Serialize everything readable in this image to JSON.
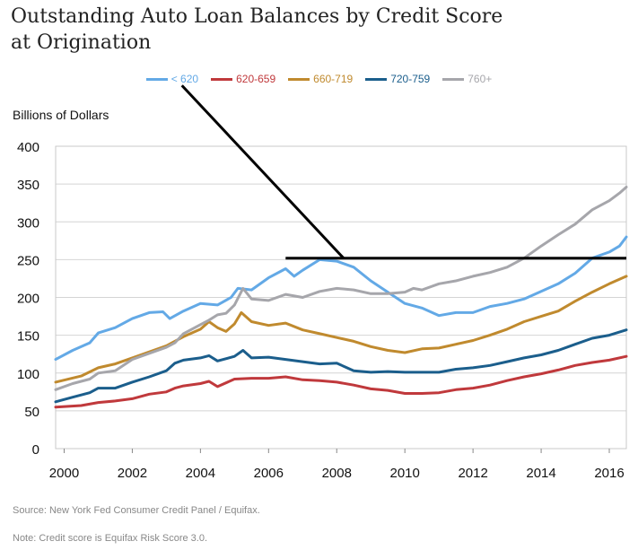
{
  "chart_data": {
    "type": "line",
    "title": "Outstanding Auto Loan Balances by Credit Score at Origination",
    "ylabel": "Billions of Dollars",
    "xlabel": "",
    "xlim": [
      1999.75,
      2016.5
    ],
    "ylim": [
      0,
      400
    ],
    "yticks": [
      0,
      50,
      100,
      150,
      200,
      250,
      300,
      350,
      400
    ],
    "xticks": [
      2000,
      2002,
      2004,
      2006,
      2008,
      2010,
      2012,
      2014,
      2016
    ],
    "grid": true,
    "legend_position": "top-center",
    "annotation": {
      "type": "callout-line",
      "anchor": {
        "x": 2008.2,
        "y": 252
      },
      "horizontal_to_x": 2016.5,
      "pointer_to_series": "< 620"
    },
    "series": [
      {
        "name": "< 620",
        "color": "#63a9e6",
        "points": [
          [
            1999.75,
            118
          ],
          [
            2000.25,
            130
          ],
          [
            2000.75,
            140
          ],
          [
            2001,
            153
          ],
          [
            2001.5,
            160
          ],
          [
            2002,
            172
          ],
          [
            2002.5,
            180
          ],
          [
            2002.9,
            181
          ],
          [
            2003.1,
            172
          ],
          [
            2003.5,
            182
          ],
          [
            2004,
            192
          ],
          [
            2004.5,
            190
          ],
          [
            2004.9,
            200
          ],
          [
            2005.1,
            212
          ],
          [
            2005.5,
            210
          ],
          [
            2006,
            226
          ],
          [
            2006.5,
            238
          ],
          [
            2006.75,
            228
          ],
          [
            2007,
            236
          ],
          [
            2007.5,
            250
          ],
          [
            2008,
            248
          ],
          [
            2008.5,
            240
          ],
          [
            2009,
            222
          ],
          [
            2009.5,
            207
          ],
          [
            2010,
            192
          ],
          [
            2010.5,
            186
          ],
          [
            2011,
            176
          ],
          [
            2011.5,
            180
          ],
          [
            2012,
            180
          ],
          [
            2012.5,
            188
          ],
          [
            2013,
            192
          ],
          [
            2013.5,
            198
          ],
          [
            2014,
            208
          ],
          [
            2014.5,
            218
          ],
          [
            2015,
            232
          ],
          [
            2015.5,
            252
          ],
          [
            2016,
            260
          ],
          [
            2016.3,
            268
          ],
          [
            2016.5,
            280
          ]
        ]
      },
      {
        "name": "620-659",
        "color": "#c0393c",
        "points": [
          [
            1999.75,
            55
          ],
          [
            2000.5,
            57
          ],
          [
            2001,
            61
          ],
          [
            2001.5,
            63
          ],
          [
            2002,
            66
          ],
          [
            2002.5,
            72
          ],
          [
            2003,
            75
          ],
          [
            2003.25,
            80
          ],
          [
            2003.5,
            83
          ],
          [
            2004,
            86
          ],
          [
            2004.25,
            89
          ],
          [
            2004.5,
            82
          ],
          [
            2005,
            92
          ],
          [
            2005.5,
            93
          ],
          [
            2006,
            93
          ],
          [
            2006.5,
            95
          ],
          [
            2007,
            91
          ],
          [
            2007.5,
            90
          ],
          [
            2008,
            88
          ],
          [
            2008.5,
            84
          ],
          [
            2009,
            79
          ],
          [
            2009.5,
            77
          ],
          [
            2010,
            73
          ],
          [
            2010.5,
            73
          ],
          [
            2011,
            74
          ],
          [
            2011.5,
            78
          ],
          [
            2012,
            80
          ],
          [
            2012.5,
            84
          ],
          [
            2013,
            90
          ],
          [
            2013.5,
            95
          ],
          [
            2014,
            99
          ],
          [
            2014.5,
            104
          ],
          [
            2015,
            110
          ],
          [
            2015.5,
            114
          ],
          [
            2016,
            117
          ],
          [
            2016.5,
            122
          ]
        ]
      },
      {
        "name": "660-719",
        "color": "#c08a2e",
        "points": [
          [
            1999.75,
            88
          ],
          [
            2000.5,
            96
          ],
          [
            2001,
            107
          ],
          [
            2001.5,
            112
          ],
          [
            2002,
            120
          ],
          [
            2002.5,
            128
          ],
          [
            2003,
            136
          ],
          [
            2003.5,
            148
          ],
          [
            2004,
            158
          ],
          [
            2004.25,
            168
          ],
          [
            2004.5,
            160
          ],
          [
            2004.75,
            155
          ],
          [
            2005,
            165
          ],
          [
            2005.2,
            180
          ],
          [
            2005.5,
            168
          ],
          [
            2006,
            163
          ],
          [
            2006.5,
            166
          ],
          [
            2007,
            157
          ],
          [
            2007.5,
            152
          ],
          [
            2008,
            147
          ],
          [
            2008.5,
            142
          ],
          [
            2009,
            135
          ],
          [
            2009.5,
            130
          ],
          [
            2010,
            127
          ],
          [
            2010.5,
            132
          ],
          [
            2011,
            133
          ],
          [
            2011.5,
            138
          ],
          [
            2012,
            143
          ],
          [
            2012.5,
            150
          ],
          [
            2013,
            158
          ],
          [
            2013.5,
            168
          ],
          [
            2014,
            175
          ],
          [
            2014.5,
            182
          ],
          [
            2015,
            195
          ],
          [
            2015.5,
            207
          ],
          [
            2016,
            218
          ],
          [
            2016.5,
            228
          ]
        ]
      },
      {
        "name": "720-759",
        "color": "#1b5e8c",
        "points": [
          [
            1999.75,
            62
          ],
          [
            2000.25,
            68
          ],
          [
            2000.75,
            74
          ],
          [
            2001,
            80
          ],
          [
            2001.5,
            80
          ],
          [
            2002,
            88
          ],
          [
            2002.5,
            95
          ],
          [
            2003,
            103
          ],
          [
            2003.25,
            113
          ],
          [
            2003.5,
            117
          ],
          [
            2004,
            120
          ],
          [
            2004.25,
            123
          ],
          [
            2004.5,
            116
          ],
          [
            2005,
            122
          ],
          [
            2005.25,
            130
          ],
          [
            2005.5,
            120
          ],
          [
            2006,
            121
          ],
          [
            2006.5,
            118
          ],
          [
            2007,
            115
          ],
          [
            2007.5,
            112
          ],
          [
            2008,
            113
          ],
          [
            2008.25,
            108
          ],
          [
            2008.5,
            103
          ],
          [
            2009,
            101
          ],
          [
            2009.5,
            102
          ],
          [
            2010,
            101
          ],
          [
            2010.5,
            101
          ],
          [
            2011,
            101
          ],
          [
            2011.5,
            105
          ],
          [
            2012,
            107
          ],
          [
            2012.5,
            110
          ],
          [
            2013,
            115
          ],
          [
            2013.5,
            120
          ],
          [
            2014,
            124
          ],
          [
            2014.5,
            130
          ],
          [
            2015,
            138
          ],
          [
            2015.5,
            146
          ],
          [
            2016,
            150
          ],
          [
            2016.5,
            157
          ]
        ]
      },
      {
        "name": "760+",
        "color": "#a6a6ab",
        "points": [
          [
            1999.75,
            78
          ],
          [
            2000.25,
            86
          ],
          [
            2000.75,
            92
          ],
          [
            2001,
            100
          ],
          [
            2001.5,
            103
          ],
          [
            2002,
            118
          ],
          [
            2002.5,
            126
          ],
          [
            2003,
            134
          ],
          [
            2003.25,
            140
          ],
          [
            2003.5,
            152
          ],
          [
            2004,
            164
          ],
          [
            2004.25,
            170
          ],
          [
            2004.5,
            177
          ],
          [
            2004.75,
            179
          ],
          [
            2005,
            190
          ],
          [
            2005.25,
            212
          ],
          [
            2005.5,
            198
          ],
          [
            2006,
            196
          ],
          [
            2006.5,
            204
          ],
          [
            2007,
            200
          ],
          [
            2007.5,
            208
          ],
          [
            2008,
            212
          ],
          [
            2008.5,
            210
          ],
          [
            2009,
            205
          ],
          [
            2009.5,
            205
          ],
          [
            2010,
            207
          ],
          [
            2010.25,
            212
          ],
          [
            2010.5,
            210
          ],
          [
            2011,
            218
          ],
          [
            2011.5,
            222
          ],
          [
            2012,
            228
          ],
          [
            2012.5,
            233
          ],
          [
            2013,
            240
          ],
          [
            2013.5,
            252
          ],
          [
            2014,
            268
          ],
          [
            2014.5,
            283
          ],
          [
            2015,
            297
          ],
          [
            2015.5,
            316
          ],
          [
            2016,
            328
          ],
          [
            2016.3,
            338
          ],
          [
            2016.5,
            346
          ]
        ]
      }
    ]
  },
  "footer": {
    "source": "Source: New York Fed Consumer Credit Panel / Equifax.",
    "note": "Note: Credit score is Equifax Risk Score 3.0."
  }
}
